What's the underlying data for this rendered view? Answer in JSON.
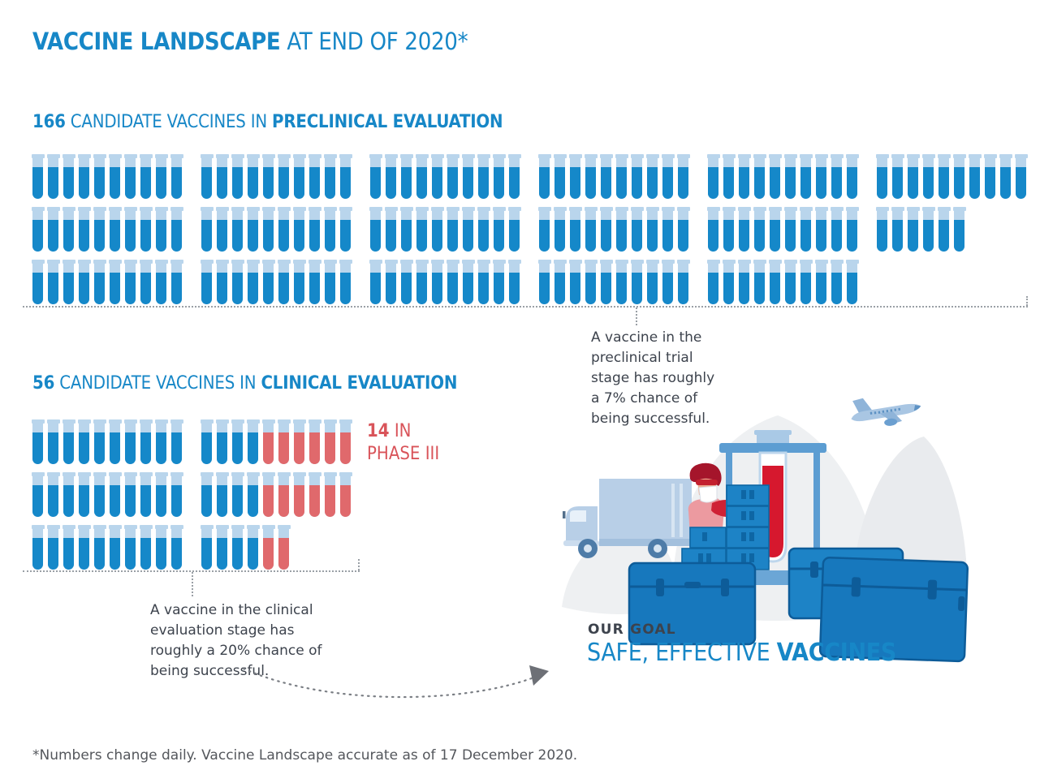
{
  "title": {
    "brand": "VACCINE LANDSCAPE",
    "suffix": " AT END OF 2020*"
  },
  "preclinical": {
    "count": "166",
    "label_mid": " CANDIDATE VACCINES IN ",
    "label_strong": "PRECLINICAL EVALUATION",
    "rows": [
      [
        "bbbbbbbbbb",
        "bbbbbbbbbb",
        "bbbbbbbbbb",
        "bbbbbbbbbb",
        "bbbbbbbbbb",
        "bbbbbbbbbb"
      ],
      [
        "bbbbbbbbbb",
        "bbbbbbbbbb",
        "bbbbbbbbbb",
        "bbbbbbbbbb",
        "bbbbbbbbbb",
        "bbbbbb"
      ],
      [
        "bbbbbbbbbb",
        "bbbbbbbbbb",
        "bbbbbbbbbb",
        "bbbbbbbbbb",
        "bbbbbbbbbb"
      ]
    ],
    "note": "A vaccine in the\npreclinical trial\nstage has roughly\na 7% chance of\nbeing successful."
  },
  "clinical": {
    "count": "56",
    "label_mid": " CANDIDATE VACCINES IN ",
    "label_strong": "CLINICAL EVALUATION",
    "rows": [
      [
        "bbbbbbbbbb",
        "bbbbrrrrrr"
      ],
      [
        "bbbbbbbbbb",
        "bbbbrrrrrr"
      ],
      [
        "bbbbbbbbbb",
        "bbbbrr"
      ]
    ],
    "phase3_count": "14",
    "phase3_rest": " IN",
    "phase3_line2": "PHASE III",
    "note": "A vaccine in the clinical\nevaluation stage has\nroughly a 20% chance of\nbeing successful."
  },
  "goal": {
    "kicker": "OUR GOAL",
    "line_regular": "SAFE, EFFECTIVE ",
    "line_strong": "VACCINES"
  },
  "footnote": "*Numbers change daily. Vaccine Landscape accurate as of 17 December 2020.",
  "illustration_parts": [
    "background-blob",
    "airplane-icon",
    "truck-icon",
    "worker-icon",
    "crate-stack-icon",
    "giant-test-tube-icon",
    "test-tube-stand-icon",
    "cargo-trunk-icon"
  ],
  "colors": {
    "brand_blue": "#1787c7",
    "tube_blue": "#1588c9",
    "tube_cap": "#b9d5ec",
    "tube_red": "#e0696c",
    "red_text": "#d9545a",
    "big_tube_red": "#d6182e",
    "dark_text": "#3d434d",
    "muted_text": "#54575c",
    "dash_line": "#9aa0a6",
    "arrow_gray": "#6d7076",
    "crate_blue": "#1d83c6",
    "crate_dark": "#0e66a4",
    "truck_blue": "#b8cfe7"
  },
  "chart_data": {
    "type": "pictograph",
    "icon": "test-tube",
    "title": "VACCINE LANDSCAPE AT END OF 2020*",
    "series": [
      {
        "name": "Candidate vaccines in preclinical evaluation",
        "value": 166,
        "rows_of_icons": [
          60,
          56,
          50
        ],
        "color": "#1588c9"
      },
      {
        "name": "Candidate vaccines in clinical evaluation",
        "value": 56,
        "rows_of_icons": [
          20,
          20,
          16
        ],
        "color": "#1588c9"
      },
      {
        "name": "In Phase III (subset of clinical, shown red)",
        "value": 14,
        "color": "#e0696c"
      }
    ],
    "annotations": [
      "A vaccine in the preclinical trial stage has roughly a 7% chance of being successful.",
      "A vaccine in the clinical evaluation stage has roughly a 20% chance of being successful."
    ],
    "goal_text": "OUR GOAL — SAFE, EFFECTIVE VACCINES",
    "footnote": "*Numbers change daily. Vaccine Landscape accurate as of 17 December 2020."
  }
}
